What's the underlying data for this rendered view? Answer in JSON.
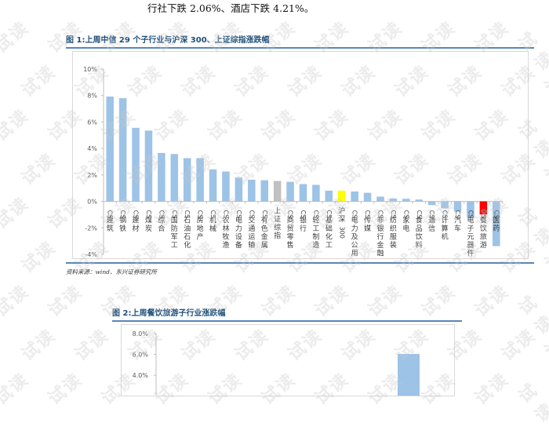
{
  "intro_text": "行社下跌 2.06%、酒店下跌 4.21%。",
  "figure1": {
    "title": "图 1:上周中信 29 个子行业与沪深 300、上证综指涨跌幅",
    "source": "资料来源：wind、东兴证券研究所"
  },
  "figure2": {
    "title": "图 2:上周餐饮旅游子行业涨跌幅"
  },
  "watermark_text": "试读",
  "colors": {
    "bar_default": "#9dc3e6",
    "bar_index_sh": "#c0c0c0",
    "bar_hs300": "#ffff00",
    "bar_highlight": "#ff0000",
    "title": "#1f4e79",
    "rule": "#5b86b5"
  },
  "chart_data": [
    {
      "type": "bar",
      "title": "上周中信 29 个子行业与沪深 300、上证综指涨跌幅",
      "xlabel": "",
      "ylabel": "",
      "ylim": [
        -4,
        10
      ],
      "yticks": [
        "10%",
        "8%",
        "6%",
        "4%",
        "2%",
        "0%",
        "-2%",
        "-4%"
      ],
      "grid": false,
      "legend": null,
      "categories": [
        "CS建筑",
        "CS钢铁",
        "CS建材",
        "CS煤炭",
        "CS综合",
        "CS国防军工",
        "CS石油石化",
        "CS房地产",
        "CS机械",
        "CS农林牧渔",
        "CS电力设备",
        "CS交通运输",
        "CS有色金属",
        "上证综指",
        "CS商贸零售",
        "CS银行",
        "CS轻工制造",
        "CS基础化工",
        "沪深300",
        "CS电力及公用...",
        "CS传媒",
        "CS非银行金融",
        "CS纺织服装",
        "CS家电",
        "CS食品饮料",
        "CS通信",
        "CS计算机",
        "CS汽车",
        "CS电子元器件",
        "CS餐饮旅游",
        "CS医药"
      ],
      "values": [
        7.92,
        7.8,
        5.56,
        5.35,
        3.66,
        3.58,
        3.27,
        3.27,
        2.42,
        2.26,
        1.8,
        1.64,
        1.6,
        1.54,
        1.48,
        1.31,
        1.25,
        0.81,
        0.81,
        0.75,
        0.65,
        0.36,
        0.22,
        0.2,
        0.14,
        -0.28,
        -0.53,
        -0.77,
        -1.23,
        -0.99,
        -3.38
      ],
      "bar_colors": [
        "#9dc3e6",
        "#9dc3e6",
        "#9dc3e6",
        "#9dc3e6",
        "#9dc3e6",
        "#9dc3e6",
        "#9dc3e6",
        "#9dc3e6",
        "#9dc3e6",
        "#9dc3e6",
        "#9dc3e6",
        "#9dc3e6",
        "#9dc3e6",
        "#c0c0c0",
        "#9dc3e6",
        "#9dc3e6",
        "#9dc3e6",
        "#9dc3e6",
        "#ffff00",
        "#9dc3e6",
        "#9dc3e6",
        "#9dc3e6",
        "#9dc3e6",
        "#9dc3e6",
        "#9dc3e6",
        "#9dc3e6",
        "#9dc3e6",
        "#9dc3e6",
        "#9dc3e6",
        "#ff0000",
        "#9dc3e6"
      ]
    },
    {
      "type": "bar",
      "title": "上周餐饮旅游子行业涨跌幅",
      "xlabel": "",
      "ylabel": "",
      "ylim_visible": [
        2.0,
        8.0
      ],
      "yticks": [
        "8.0%",
        "6.0%",
        "4.0%"
      ],
      "grid": false,
      "categories_visible": [],
      "values_visible": [
        6.05
      ],
      "note": "chart cropped at bottom of screenshot; only one bar top visible"
    }
  ]
}
